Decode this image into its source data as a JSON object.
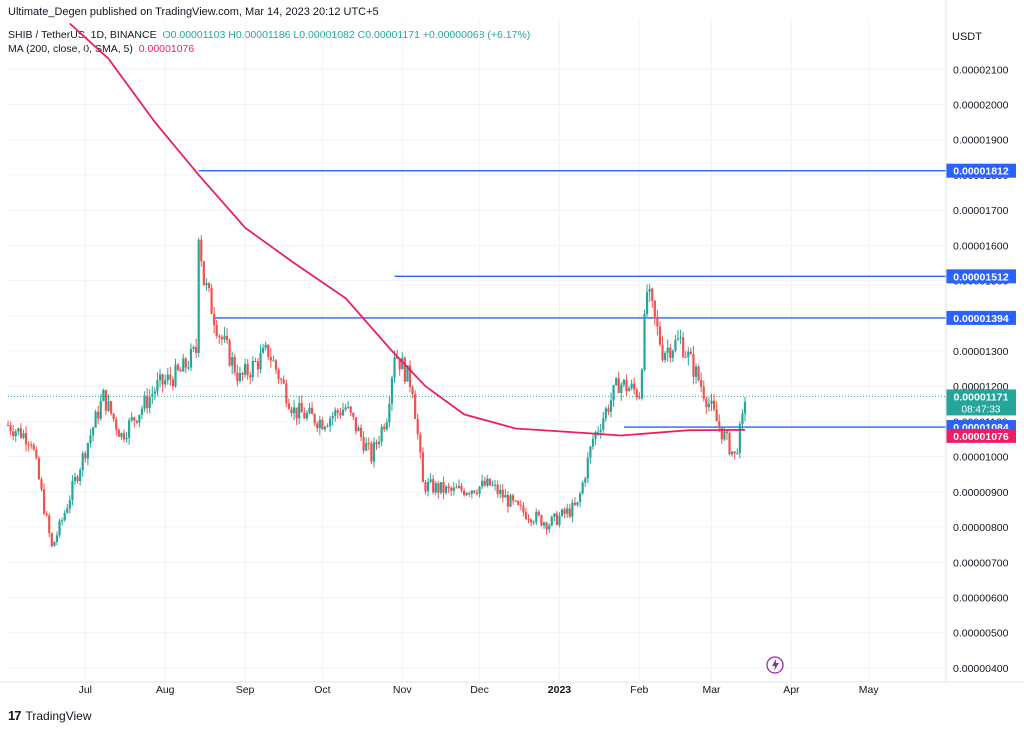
{
  "header": {
    "published": "Ultimate_Degen published on TradingView.com, Mar 14, 2023 20:12 UTC+5"
  },
  "legend": {
    "symbol": "SHIB / TetherUS, 1D, BINANCE",
    "ohlc": "O0.00001103 H0.00001186 L0.00001082 C0.00001171 +0.00000068 (+6.17%)",
    "ma_label": "MA (200, close, 0, SMA, 5)",
    "ma_value": "0.00001076"
  },
  "footer": {
    "brand": "TradingView",
    "logo_text": "17"
  },
  "colors": {
    "up": "#26a69a",
    "down": "#ef5350",
    "ma": "#e91e63",
    "level": "#2962ff"
  },
  "chart_data": {
    "type": "candlestick",
    "currency": "USDT",
    "x_tick_labels": [
      "Jul",
      "Aug",
      "Sep",
      "Oct",
      "Nov",
      "Dec",
      "2023",
      "Feb",
      "Mar",
      "Apr",
      "May"
    ],
    "x_tick_dates": [
      "2022-07-01",
      "2022-08-01",
      "2022-09-01",
      "2022-10-01",
      "2022-11-01",
      "2022-12-01",
      "2023-01-01",
      "2023-02-01",
      "2023-03-01",
      "2023-04-01",
      "2023-05-01"
    ],
    "x_range": [
      "2022-06-01",
      "2023-05-31"
    ],
    "y_ticks": [
      4e-06,
      5e-06,
      6e-06,
      7e-06,
      8e-06,
      9e-06,
      1e-05,
      1.1e-05,
      1.2e-05,
      1.3e-05,
      1.4e-05,
      1.5e-05,
      1.6e-05,
      1.7e-05,
      1.8e-05,
      1.9e-05,
      2e-05,
      2.1e-05
    ],
    "y_tick_labels": [
      "0.00000400",
      "0.00000500",
      "0.00000600",
      "0.00000700",
      "0.00000800",
      "0.00000900",
      "0.00001000",
      "0.00001100",
      "0.00001200",
      "0.00001300",
      "0.00001400",
      "0.00001500",
      "0.00001600",
      "0.00001700",
      "0.00001800",
      "0.00001900",
      "0.00002000",
      "0.00002100"
    ],
    "y_range": [
      3.6e-06,
      2.24e-05
    ],
    "price_series": [
      {
        "date": "2022-06-01",
        "close": 1.09e-05
      },
      {
        "date": "2022-06-10",
        "close": 1.05e-05
      },
      {
        "date": "2022-06-18",
        "close": 7.4e-06
      },
      {
        "date": "2022-06-22",
        "close": 8.2e-06
      },
      {
        "date": "2022-07-01",
        "close": 1.02e-05
      },
      {
        "date": "2022-07-08",
        "close": 1.17e-05
      },
      {
        "date": "2022-07-15",
        "close": 1.06e-05
      },
      {
        "date": "2022-07-22",
        "close": 1.13e-05
      },
      {
        "date": "2022-07-29",
        "close": 1.2e-05
      },
      {
        "date": "2022-08-07",
        "close": 1.24e-05
      },
      {
        "date": "2022-08-13",
        "close": 1.3e-05
      },
      {
        "date": "2022-08-14",
        "close": 1.65e-05
      },
      {
        "date": "2022-08-16",
        "close": 1.5e-05
      },
      {
        "date": "2022-08-22",
        "close": 1.35e-05
      },
      {
        "date": "2022-08-30",
        "close": 1.22e-05
      },
      {
        "date": "2022-09-10",
        "close": 1.3e-05
      },
      {
        "date": "2022-09-20",
        "close": 1.13e-05
      },
      {
        "date": "2022-10-01",
        "close": 1.1e-05
      },
      {
        "date": "2022-10-10",
        "close": 1.14e-05
      },
      {
        "date": "2022-10-20",
        "close": 1e-05
      },
      {
        "date": "2022-10-26",
        "close": 1.12e-05
      },
      {
        "date": "2022-10-29",
        "close": 1.3e-05
      },
      {
        "date": "2022-11-05",
        "close": 1.2e-05
      },
      {
        "date": "2022-11-09",
        "close": 9.2e-06
      },
      {
        "date": "2022-11-20",
        "close": 9e-06
      },
      {
        "date": "2022-12-05",
        "close": 9.2e-06
      },
      {
        "date": "2022-12-16",
        "close": 8.5e-06
      },
      {
        "date": "2022-12-28",
        "close": 8.1e-06
      },
      {
        "date": "2023-01-08",
        "close": 8.6e-06
      },
      {
        "date": "2023-01-14",
        "close": 1.05e-05
      },
      {
        "date": "2023-01-24",
        "close": 1.21e-05
      },
      {
        "date": "2023-02-01",
        "close": 1.18e-05
      },
      {
        "date": "2023-02-04",
        "close": 1.47e-05
      },
      {
        "date": "2023-02-10",
        "close": 1.3e-05
      },
      {
        "date": "2023-02-17",
        "close": 1.33e-05
      },
      {
        "date": "2023-02-24",
        "close": 1.22e-05
      },
      {
        "date": "2023-03-03",
        "close": 1.1e-05
      },
      {
        "date": "2023-03-10",
        "close": 1e-05
      },
      {
        "date": "2023-03-13",
        "close": 1.1e-05
      },
      {
        "date": "2023-03-14",
        "close": 1.17e-05
      }
    ],
    "ma_series": [
      {
        "date": "2022-06-25",
        "value": 2.23e-05
      },
      {
        "date": "2022-07-10",
        "value": 2.13e-05
      },
      {
        "date": "2022-07-28",
        "value": 1.95e-05
      },
      {
        "date": "2022-08-14",
        "value": 1.8e-05
      },
      {
        "date": "2022-09-01",
        "value": 1.65e-05
      },
      {
        "date": "2022-09-20",
        "value": 1.55e-05
      },
      {
        "date": "2022-10-10",
        "value": 1.45e-05
      },
      {
        "date": "2022-10-28",
        "value": 1.3e-05
      },
      {
        "date": "2022-11-10",
        "value": 1.2e-05
      },
      {
        "date": "2022-11-25",
        "value": 1.12e-05
      },
      {
        "date": "2022-12-15",
        "value": 1.08e-05
      },
      {
        "date": "2023-01-05",
        "value": 1.07e-05
      },
      {
        "date": "2023-01-25",
        "value": 1.06e-05
      },
      {
        "date": "2023-02-20",
        "value": 1.075e-05
      },
      {
        "date": "2023-03-14",
        "value": 1.076e-05
      }
    ],
    "horizontal_levels": [
      {
        "value": 1.812e-05,
        "label": "0.00001812",
        "start_date": "2022-08-14"
      },
      {
        "value": 1.512e-05,
        "label": "0.00001512",
        "start_date": "2022-10-29"
      },
      {
        "value": 1.394e-05,
        "label": "0.00001394",
        "start_date": "2022-08-20"
      },
      {
        "value": 1.084e-05,
        "label": "0.00001084",
        "start_date": "2023-01-26"
      }
    ],
    "last_price": {
      "value": 1.171e-05,
      "label": "0.00001171",
      "countdown": "08:47:33"
    },
    "ma_last": {
      "value": 1.076e-05,
      "label": "0.00001076"
    }
  }
}
